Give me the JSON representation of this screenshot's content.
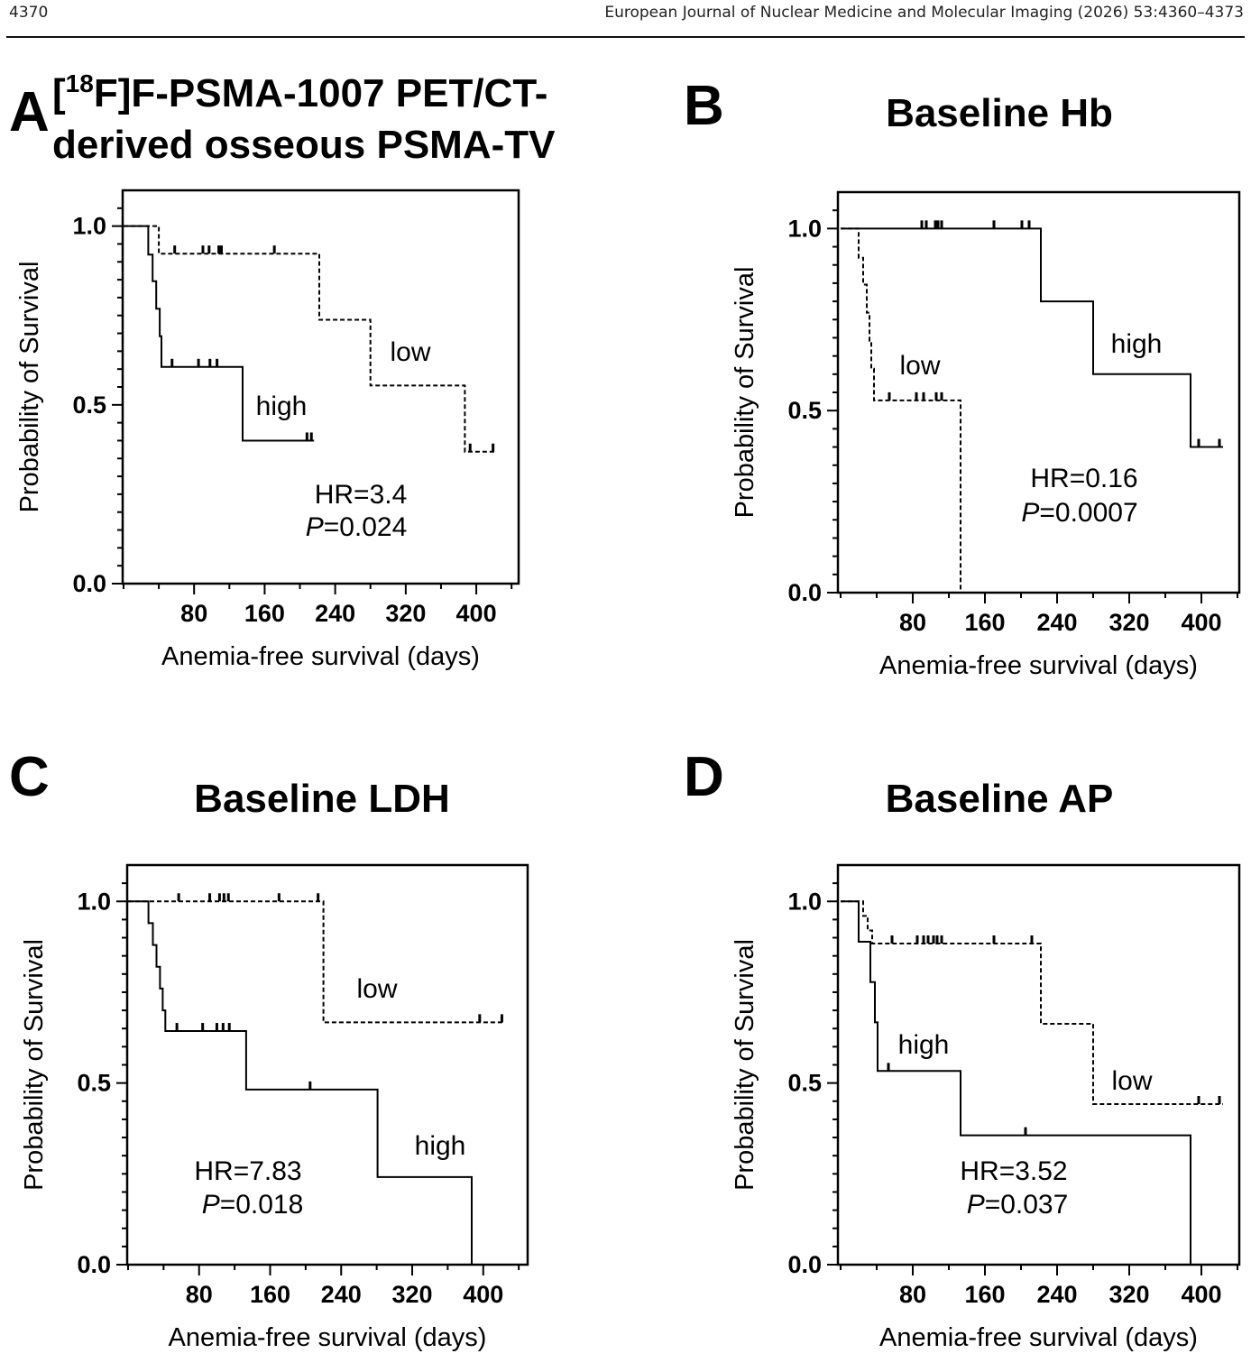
{
  "page": {
    "page_number": "4370",
    "journal_line": "European Journal of Nuclear Medicine and Molecular Imaging (2026) 53:4360–4373"
  },
  "chart_data": [
    {
      "type": "line",
      "label": "A",
      "title_pre": "[",
      "title_sup": "18",
      "title_rest": "F]F-PSMA-1007 PET/CT-",
      "title_line2": "derived osseous PSMA-TV",
      "xlabel": "Anemia-free survival (days)",
      "ylabel": "Probability of Survival",
      "xticks": [
        80,
        160,
        240,
        320,
        400
      ],
      "yticks": [
        0.0,
        0.5,
        1.0
      ],
      "ytick_labels": [
        "0.0",
        "0.5",
        "1.0"
      ],
      "xlim": [
        -1,
        448
      ],
      "ylim": [
        0,
        1.1
      ],
      "series": [
        {
          "name": "high",
          "style": "solid",
          "steps": [
            [
              0,
              1.0
            ],
            [
              28,
              1.0
            ],
            [
              28,
              0.92
            ],
            [
              33,
              0.92
            ],
            [
              33,
              0.846
            ],
            [
              37,
              0.846
            ],
            [
              37,
              0.769
            ],
            [
              41,
              0.769
            ],
            [
              41,
              0.692
            ],
            [
              43,
              0.692
            ],
            [
              43,
              0.606
            ],
            [
              135,
              0.606
            ],
            [
              135,
              0.4
            ],
            [
              216,
              0.4
            ]
          ],
          "censor": [
            [
              55,
              0.606
            ],
            [
              85,
              0.606
            ],
            [
              98,
              0.606
            ],
            [
              106,
              0.606
            ],
            [
              208,
              0.4
            ],
            [
              213,
              0.4
            ]
          ]
        },
        {
          "name": "low",
          "style": "dashed",
          "steps": [
            [
              0,
              1.0
            ],
            [
              40,
              1.0
            ],
            [
              40,
              0.923
            ],
            [
              222,
              0.923
            ],
            [
              222,
              0.738
            ],
            [
              280,
              0.738
            ],
            [
              280,
              0.554
            ],
            [
              387,
              0.554
            ],
            [
              387,
              0.369
            ],
            [
              421,
              0.369
            ]
          ],
          "censor": [
            [
              58,
              0.923
            ],
            [
              90,
              0.923
            ],
            [
              97,
              0.923
            ],
            [
              108,
              0.923
            ],
            [
              111,
              0.923
            ],
            [
              171,
              0.923
            ],
            [
              393,
              0.369
            ],
            [
              419,
              0.369
            ]
          ]
        }
      ],
      "annotations": {
        "high_label": "high",
        "low_label": "low",
        "hr_text": "HR=3.4",
        "p_letter": "P",
        "p_value": "=0.024"
      }
    },
    {
      "type": "line",
      "label": "B",
      "title_pre": "",
      "title_sup": "",
      "title_rest": "Baseline Hb",
      "title_line2": "",
      "xlabel": "Anemia-free survival (days)",
      "ylabel": "Probability of Survival",
      "xticks": [
        80,
        160,
        240,
        320,
        400
      ],
      "yticks": [
        0.0,
        0.5,
        1.0
      ],
      "ytick_labels": [
        "0.0",
        "0.5",
        "1.0"
      ],
      "xlim": [
        -3,
        442
      ],
      "ylim": [
        0,
        1.1
      ],
      "series": [
        {
          "name": "high",
          "style": "solid",
          "steps": [
            [
              0,
              1.0
            ],
            [
              222,
              1.0
            ],
            [
              222,
              0.8
            ],
            [
              280,
              0.8
            ],
            [
              280,
              0.6
            ],
            [
              388,
              0.6
            ],
            [
              388,
              0.4
            ],
            [
              424,
              0.4
            ]
          ],
          "censor": [
            [
              90,
              1.0
            ],
            [
              95,
              1.0
            ],
            [
              105,
              1.0
            ],
            [
              108,
              1.0
            ],
            [
              112,
              1.0
            ],
            [
              170,
              1.0
            ],
            [
              201,
              1.0
            ],
            [
              209,
              1.0
            ],
            [
              397,
              0.4
            ],
            [
              420,
              0.4
            ]
          ]
        },
        {
          "name": "low",
          "style": "dashed",
          "steps": [
            [
              0,
              1.0
            ],
            [
              20,
              1.0
            ],
            [
              20,
              0.92
            ],
            [
              25,
              0.92
            ],
            [
              25,
              0.846
            ],
            [
              29,
              0.846
            ],
            [
              29,
              0.769
            ],
            [
              32,
              0.769
            ],
            [
              32,
              0.692
            ],
            [
              34,
              0.692
            ],
            [
              34,
              0.615
            ],
            [
              37,
              0.615
            ],
            [
              37,
              0.528
            ],
            [
              133,
              0.528
            ],
            [
              133,
              0.0
            ]
          ],
          "censor": [
            [
              54,
              0.528
            ],
            [
              84,
              0.528
            ],
            [
              92,
              0.528
            ],
            [
              106,
              0.528
            ],
            [
              112,
              0.528
            ]
          ]
        }
      ],
      "annotations": {
        "high_label": "high",
        "low_label": "low",
        "hr_text": "HR=0.16",
        "p_letter": "P",
        "p_value": "=0.0007"
      }
    },
    {
      "type": "line",
      "label": "C",
      "title_pre": "",
      "title_sup": "",
      "title_rest": "Baseline LDH",
      "title_line2": "",
      "xlabel": "Anemia-free survival (days)",
      "ylabel": "Probability of Survival",
      "xticks": [
        80,
        160,
        240,
        320,
        400
      ],
      "yticks": [
        0.0,
        0.5,
        1.0
      ],
      "ytick_labels": [
        "0.0",
        "0.5",
        "1.0"
      ],
      "xlim": [
        -1,
        450
      ],
      "ylim": [
        0,
        1.1
      ],
      "series": [
        {
          "name": "high",
          "style": "solid",
          "steps": [
            [
              0,
              1.0
            ],
            [
              23,
              1.0
            ],
            [
              23,
              0.94
            ],
            [
              28,
              0.94
            ],
            [
              28,
              0.88
            ],
            [
              32,
              0.88
            ],
            [
              32,
              0.82
            ],
            [
              36,
              0.82
            ],
            [
              36,
              0.76
            ],
            [
              39,
              0.76
            ],
            [
              39,
              0.7
            ],
            [
              42,
              0.7
            ],
            [
              42,
              0.643
            ],
            [
              133,
              0.643
            ],
            [
              133,
              0.482
            ],
            [
              281,
              0.482
            ],
            [
              281,
              0.241
            ],
            [
              387,
              0.241
            ],
            [
              387,
              0.0
            ]
          ],
          "censor": [
            [
              55,
              0.643
            ],
            [
              84,
              0.643
            ],
            [
              100,
              0.643
            ],
            [
              107,
              0.643
            ],
            [
              114,
              0.643
            ],
            [
              205,
              0.482
            ]
          ]
        },
        {
          "name": "low",
          "style": "dashed",
          "steps": [
            [
              0,
              1.0
            ],
            [
              220,
              1.0
            ],
            [
              220,
              0.667
            ],
            [
              424,
              0.667
            ]
          ],
          "censor": [
            [
              57,
              1.0
            ],
            [
              92,
              1.0
            ],
            [
              103,
              1.0
            ],
            [
              108,
              1.0
            ],
            [
              113,
              1.0
            ],
            [
              170,
              1.0
            ],
            [
              214,
              1.0
            ],
            [
              396,
              0.667
            ],
            [
              421,
              0.667
            ]
          ]
        }
      ],
      "annotations": {
        "high_label": "high",
        "low_label": "low",
        "hr_text": "HR=7.83",
        "p_letter": "P",
        "p_value": "=0.018"
      }
    },
    {
      "type": "line",
      "label": "D",
      "title_pre": "",
      "title_sup": "",
      "title_rest": "Baseline AP",
      "title_line2": "",
      "xlabel": "Anemia-free survival (days)",
      "ylabel": "Probability of Survival",
      "xticks": [
        80,
        160,
        240,
        320,
        400
      ],
      "yticks": [
        0.0,
        0.5,
        1.0
      ],
      "ytick_labels": [
        "0.0",
        "0.5",
        "1.0"
      ],
      "xlim": [
        -3,
        442
      ],
      "ylim": [
        0,
        1.1
      ],
      "series": [
        {
          "name": "high",
          "style": "solid",
          "steps": [
            [
              0,
              1.0
            ],
            [
              20,
              1.0
            ],
            [
              20,
              0.889
            ],
            [
              33,
              0.889
            ],
            [
              33,
              0.778
            ],
            [
              38,
              0.778
            ],
            [
              38,
              0.667
            ],
            [
              41,
              0.667
            ],
            [
              41,
              0.533
            ],
            [
              133,
              0.533
            ],
            [
              133,
              0.356
            ],
            [
              388,
              0.356
            ],
            [
              388,
              0.0
            ]
          ],
          "censor": [
            [
              53,
              0.533
            ],
            [
              205,
              0.356
            ]
          ]
        },
        {
          "name": "low",
          "style": "dashed",
          "steps": [
            [
              0,
              1.0
            ],
            [
              25,
              1.0
            ],
            [
              25,
              0.96
            ],
            [
              30,
              0.96
            ],
            [
              30,
              0.92
            ],
            [
              35,
              0.92
            ],
            [
              35,
              0.884
            ],
            [
              222,
              0.884
            ],
            [
              222,
              0.663
            ],
            [
              280,
              0.663
            ],
            [
              280,
              0.442
            ],
            [
              424,
              0.442
            ]
          ],
          "censor": [
            [
              57,
              0.884
            ],
            [
              85,
              0.884
            ],
            [
              92,
              0.884
            ],
            [
              97,
              0.884
            ],
            [
              103,
              0.884
            ],
            [
              107,
              0.884
            ],
            [
              112,
              0.884
            ],
            [
              170,
              0.884
            ],
            [
              212,
              0.884
            ],
            [
              397,
              0.442
            ],
            [
              420,
              0.442
            ]
          ]
        }
      ],
      "annotations": {
        "high_label": "high",
        "low_label": "low",
        "hr_text": "HR=3.52",
        "p_letter": "P",
        "p_value": "=0.037"
      }
    }
  ]
}
